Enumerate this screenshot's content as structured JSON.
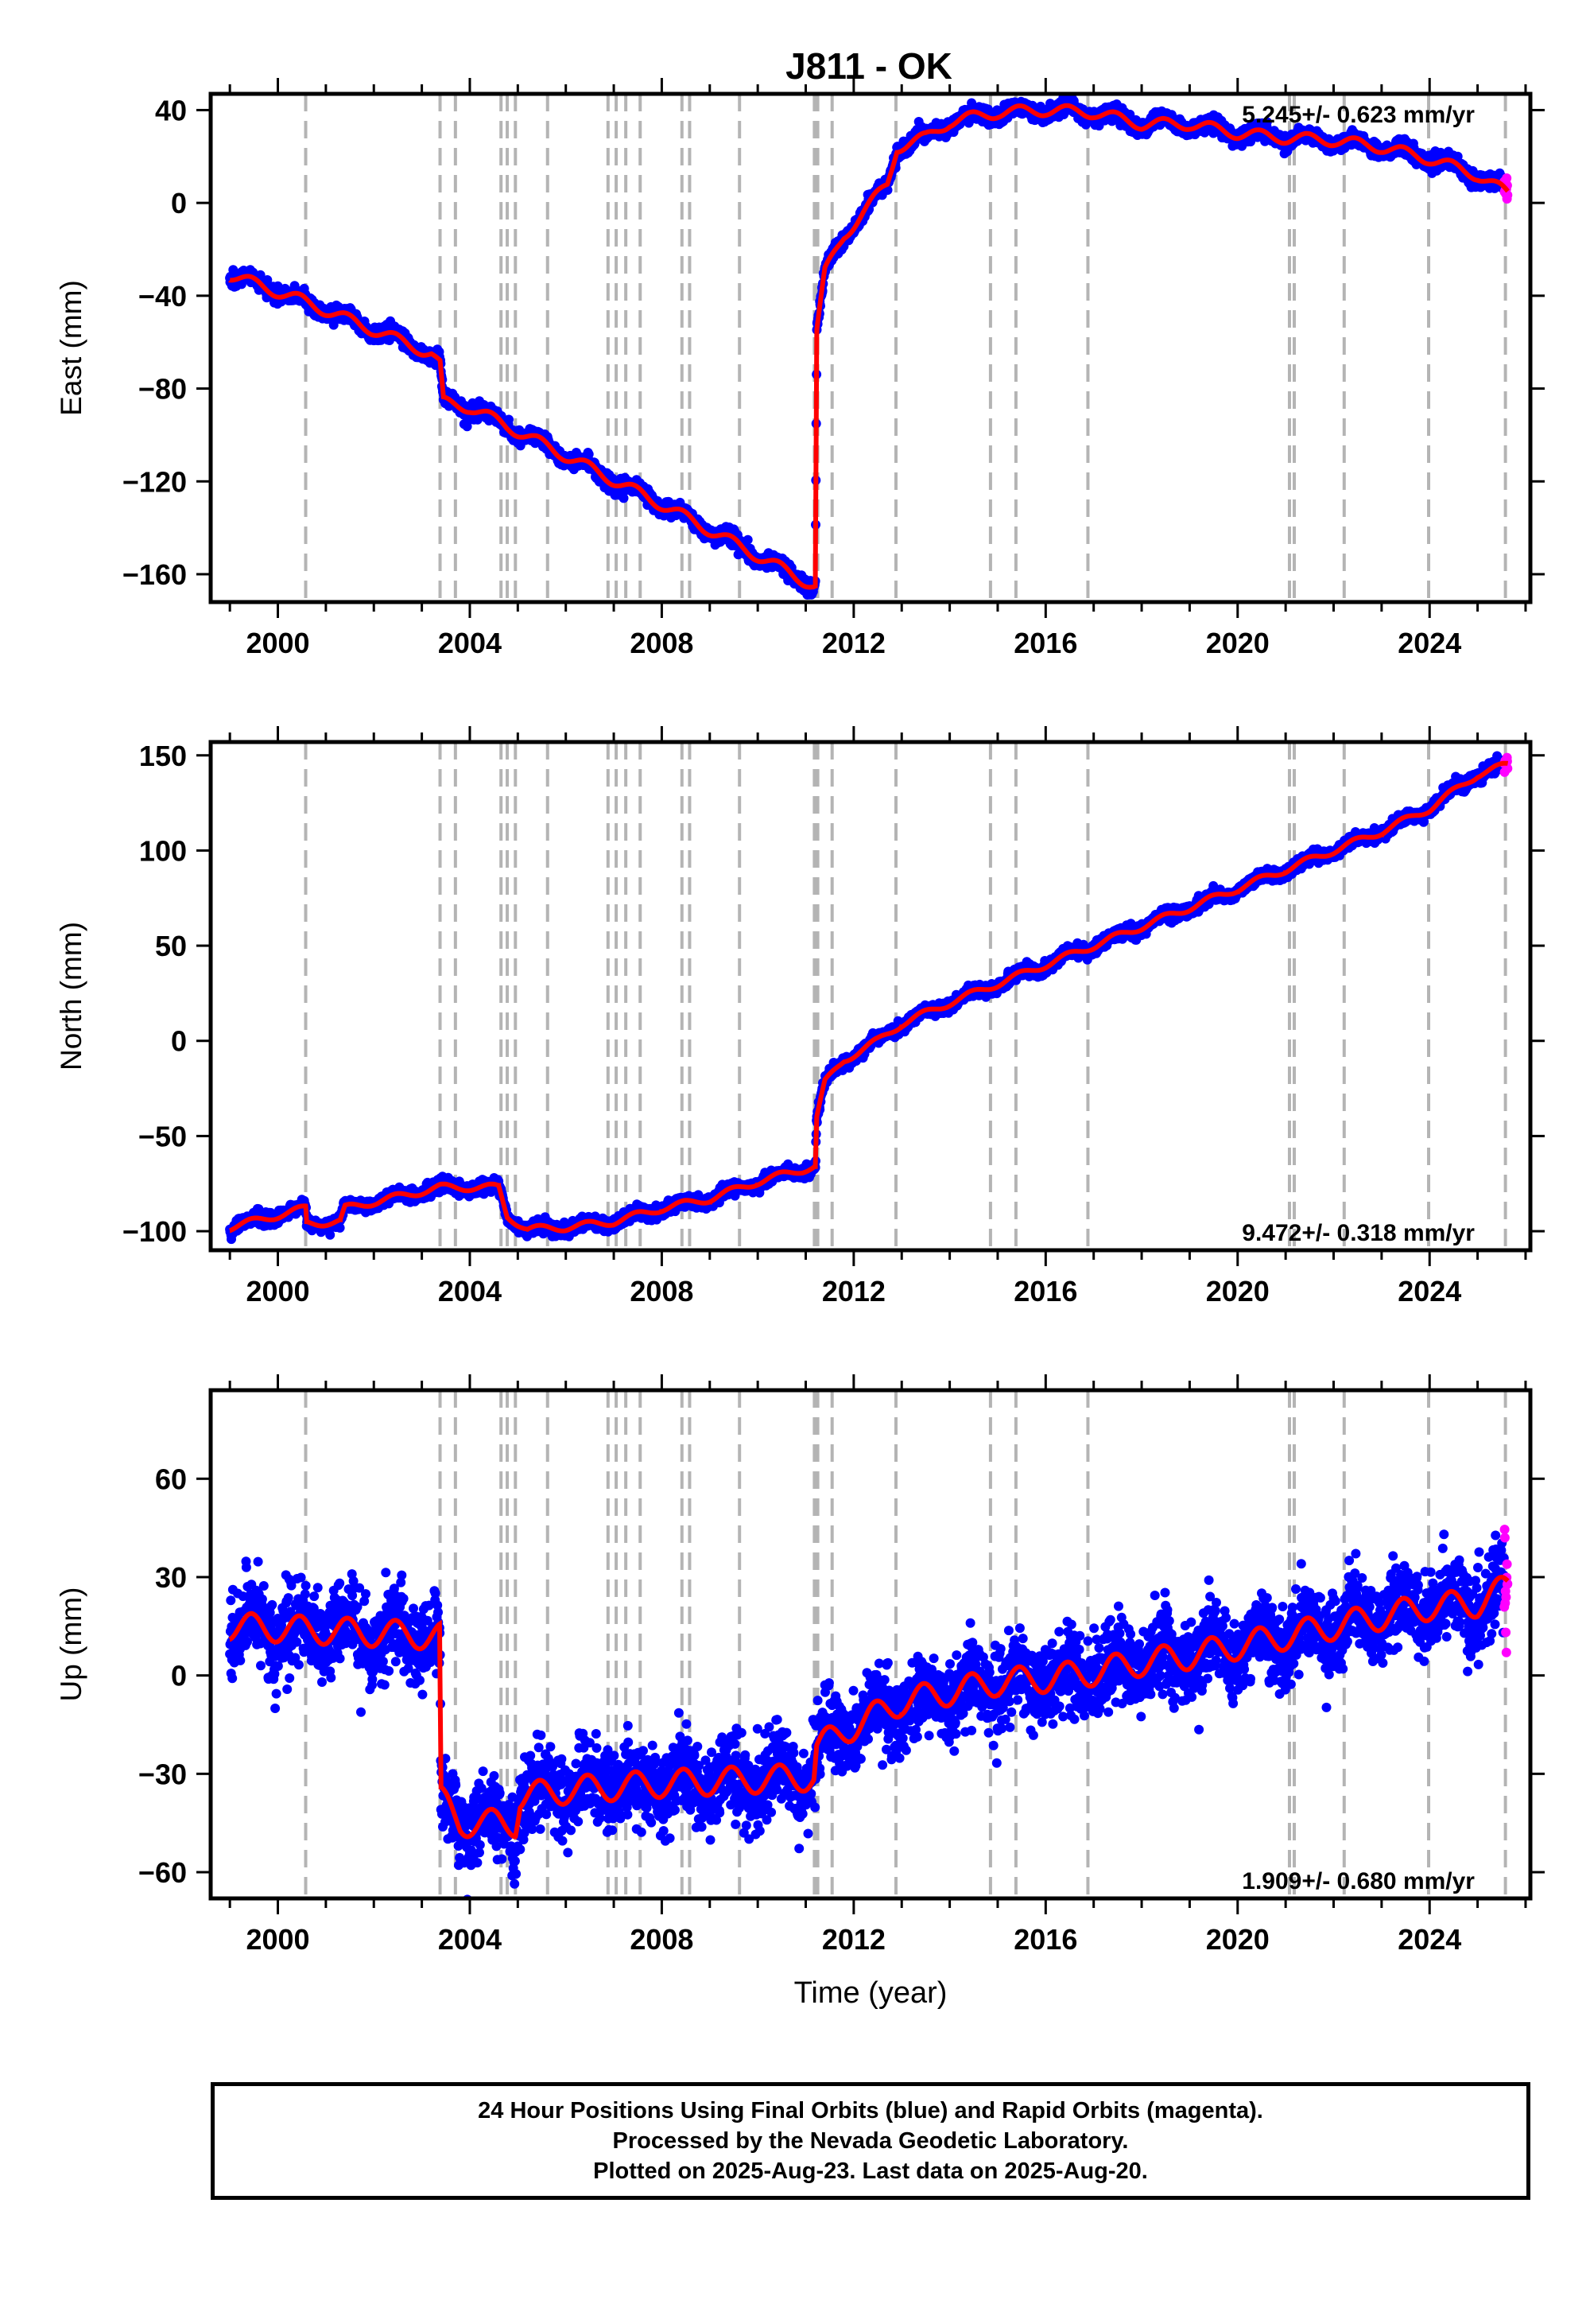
{
  "title": "J811 - OK",
  "xlabel": "Time (year)",
  "x_ticks": [
    2000,
    2004,
    2008,
    2012,
    2016,
    2020,
    2024
  ],
  "events": [
    2000.58,
    2003.38,
    2003.7,
    2004.65,
    2004.78,
    2004.95,
    2005.62,
    2006.88,
    2007.05,
    2007.25,
    2007.55,
    2008.42,
    2008.58,
    2009.62,
    2011.18,
    2011.22,
    2011.25,
    2011.55,
    2012.88,
    2014.85,
    2015.38,
    2016.88,
    2021.08,
    2021.18,
    2022.22,
    2023.98,
    2025.58
  ],
  "footer": [
    "24 Hour Positions Using Final Orbits (blue) and Rapid Orbits (magenta).",
    "Processed by the Nevada Geodetic Laboratory.",
    "Plotted on 2025-Aug-23. Last data on 2025-Aug-20."
  ],
  "colors": {
    "final_orbits": "#0000ff",
    "rapid_orbits": "#ff00ff",
    "model": "#ff0000",
    "event_lines": "#b4b4b4"
  },
  "chart_data": [
    {
      "type": "scatter",
      "name": "east",
      "ylabel": "East (mm)",
      "rate_label": "5.245+/- 0.623 mm/yr",
      "rate_position": "top-right",
      "xlim": [
        1998.6,
        2026.1
      ],
      "ylim": [
        -172,
        47
      ],
      "y_ticks": [
        40,
        0,
        -40,
        -80,
        -120,
        -160
      ],
      "data_span": [
        1999.0,
        2025.63
      ],
      "rapid_from": 2025.55,
      "trend": [
        [
          1999.0,
          -31
        ],
        [
          2000.5,
          -42
        ],
        [
          2003.2,
          -65
        ],
        [
          2003.38,
          -70
        ],
        [
          2003.45,
          -86
        ],
        [
          2004.0,
          -88
        ],
        [
          2008.0,
          -130
        ],
        [
          2011.17,
          -165
        ],
        [
          2011.2,
          -165
        ],
        [
          2011.23,
          -55
        ],
        [
          2011.4,
          -30
        ],
        [
          2011.8,
          -14
        ],
        [
          2012.2,
          -4
        ],
        [
          2012.7,
          8
        ],
        [
          2012.9,
          24
        ],
        [
          2013.5,
          28
        ],
        [
          2014.0,
          35
        ],
        [
          2015.0,
          39
        ],
        [
          2016.0,
          40
        ],
        [
          2017.0,
          39
        ],
        [
          2018.0,
          34
        ],
        [
          2019.0,
          34
        ],
        [
          2020.0,
          30
        ],
        [
          2021.0,
          28
        ],
        [
          2022.0,
          27
        ],
        [
          2023.0,
          24
        ],
        [
          2024.0,
          19
        ],
        [
          2025.0,
          12
        ],
        [
          2025.63,
          4
        ]
      ],
      "seasonal_amp": 2.4,
      "scatter_sd": 1.6
    },
    {
      "type": "scatter",
      "name": "north",
      "ylabel": "North (mm)",
      "rate_label": "9.472+/- 0.318 mm/yr",
      "rate_position": "bottom-right",
      "xlim": [
        1998.6,
        2026.1
      ],
      "ylim": [
        -110,
        157
      ],
      "y_ticks": [
        150,
        100,
        50,
        0,
        -50,
        -100
      ],
      "data_span": [
        1999.0,
        2025.63
      ],
      "rapid_from": 2025.55,
      "trend": [
        [
          1999.0,
          -98
        ],
        [
          2000.58,
          -88
        ],
        [
          2000.6,
          -96
        ],
        [
          2001.3,
          -95
        ],
        [
          2001.4,
          -88
        ],
        [
          2003.38,
          -77
        ],
        [
          2004.6,
          -77
        ],
        [
          2004.78,
          -92
        ],
        [
          2005.2,
          -99
        ],
        [
          2006.0,
          -98
        ],
        [
          2007.0,
          -95
        ],
        [
          2008.0,
          -88
        ],
        [
          2009.0,
          -83
        ],
        [
          2010.0,
          -74
        ],
        [
          2011.17,
          -66
        ],
        [
          2011.2,
          -66
        ],
        [
          2011.23,
          -40
        ],
        [
          2011.4,
          -22
        ],
        [
          2011.8,
          -10
        ],
        [
          2012.5,
          0
        ],
        [
          2013.0,
          9
        ],
        [
          2014.0,
          20
        ],
        [
          2015.0,
          30
        ],
        [
          2016.0,
          40
        ],
        [
          2017.0,
          50
        ],
        [
          2018.0,
          60
        ],
        [
          2019.0,
          70
        ],
        [
          2020.0,
          80
        ],
        [
          2021.0,
          90
        ],
        [
          2022.0,
          100
        ],
        [
          2023.0,
          110
        ],
        [
          2024.0,
          122
        ],
        [
          2025.0,
          140
        ],
        [
          2025.63,
          145
        ]
      ],
      "seasonal_amp": 1.8,
      "scatter_sd": 1.6
    },
    {
      "type": "scatter",
      "name": "up",
      "ylabel": "Up (mm)",
      "rate_label": "1.909+/- 0.680 mm/yr",
      "rate_position": "bottom-right",
      "xlim": [
        1998.6,
        2026.1
      ],
      "ylim": [
        -68,
        87
      ],
      "y_ticks": [
        60,
        30,
        0,
        -30,
        -60
      ],
      "data_span": [
        1999.0,
        2025.63
      ],
      "rapid_from": 2025.55,
      "trend": [
        [
          1999.0,
          15
        ],
        [
          2003.37,
          12
        ],
        [
          2003.4,
          -38
        ],
        [
          2003.8,
          -45
        ],
        [
          2004.95,
          -45
        ],
        [
          2005.05,
          -37
        ],
        [
          2006.0,
          -35
        ],
        [
          2008.0,
          -33
        ],
        [
          2011.17,
          -31
        ],
        [
          2011.23,
          -22
        ],
        [
          2011.8,
          -17
        ],
        [
          2013.0,
          -8
        ],
        [
          2014.0,
          -5
        ],
        [
          2015.0,
          -2
        ],
        [
          2016.0,
          -1
        ],
        [
          2017.0,
          1
        ],
        [
          2018.0,
          4
        ],
        [
          2019.0,
          6
        ],
        [
          2020.0,
          9
        ],
        [
          2021.0,
          12
        ],
        [
          2022.0,
          15
        ],
        [
          2023.0,
          18
        ],
        [
          2024.0,
          21
        ],
        [
          2025.0,
          22
        ],
        [
          2025.63,
          27
        ]
      ],
      "seasonal_amp": 4.2,
      "scatter_sd": 6.0
    }
  ]
}
